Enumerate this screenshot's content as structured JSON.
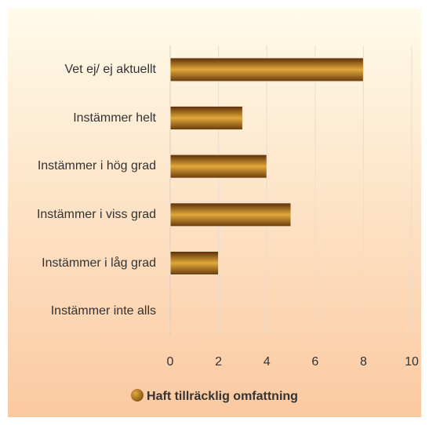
{
  "chart_data": {
    "type": "hbar",
    "categories": [
      "Vet ej/ ej aktuellt",
      "Instämmer helt",
      "Instämmer i hög grad",
      "Instämmer i viss grad",
      "Instämmer i låg grad",
      "Instämmer inte alls"
    ],
    "series": [
      {
        "name": "Haft tillräcklig omfattning",
        "color": "#e0a83a",
        "values": [
          8,
          3,
          4,
          5,
          2,
          0
        ]
      }
    ],
    "xlim": [
      0,
      10
    ],
    "xticks": [
      0,
      2,
      4,
      6,
      8,
      10
    ],
    "grid": true,
    "legend": "bottom"
  }
}
